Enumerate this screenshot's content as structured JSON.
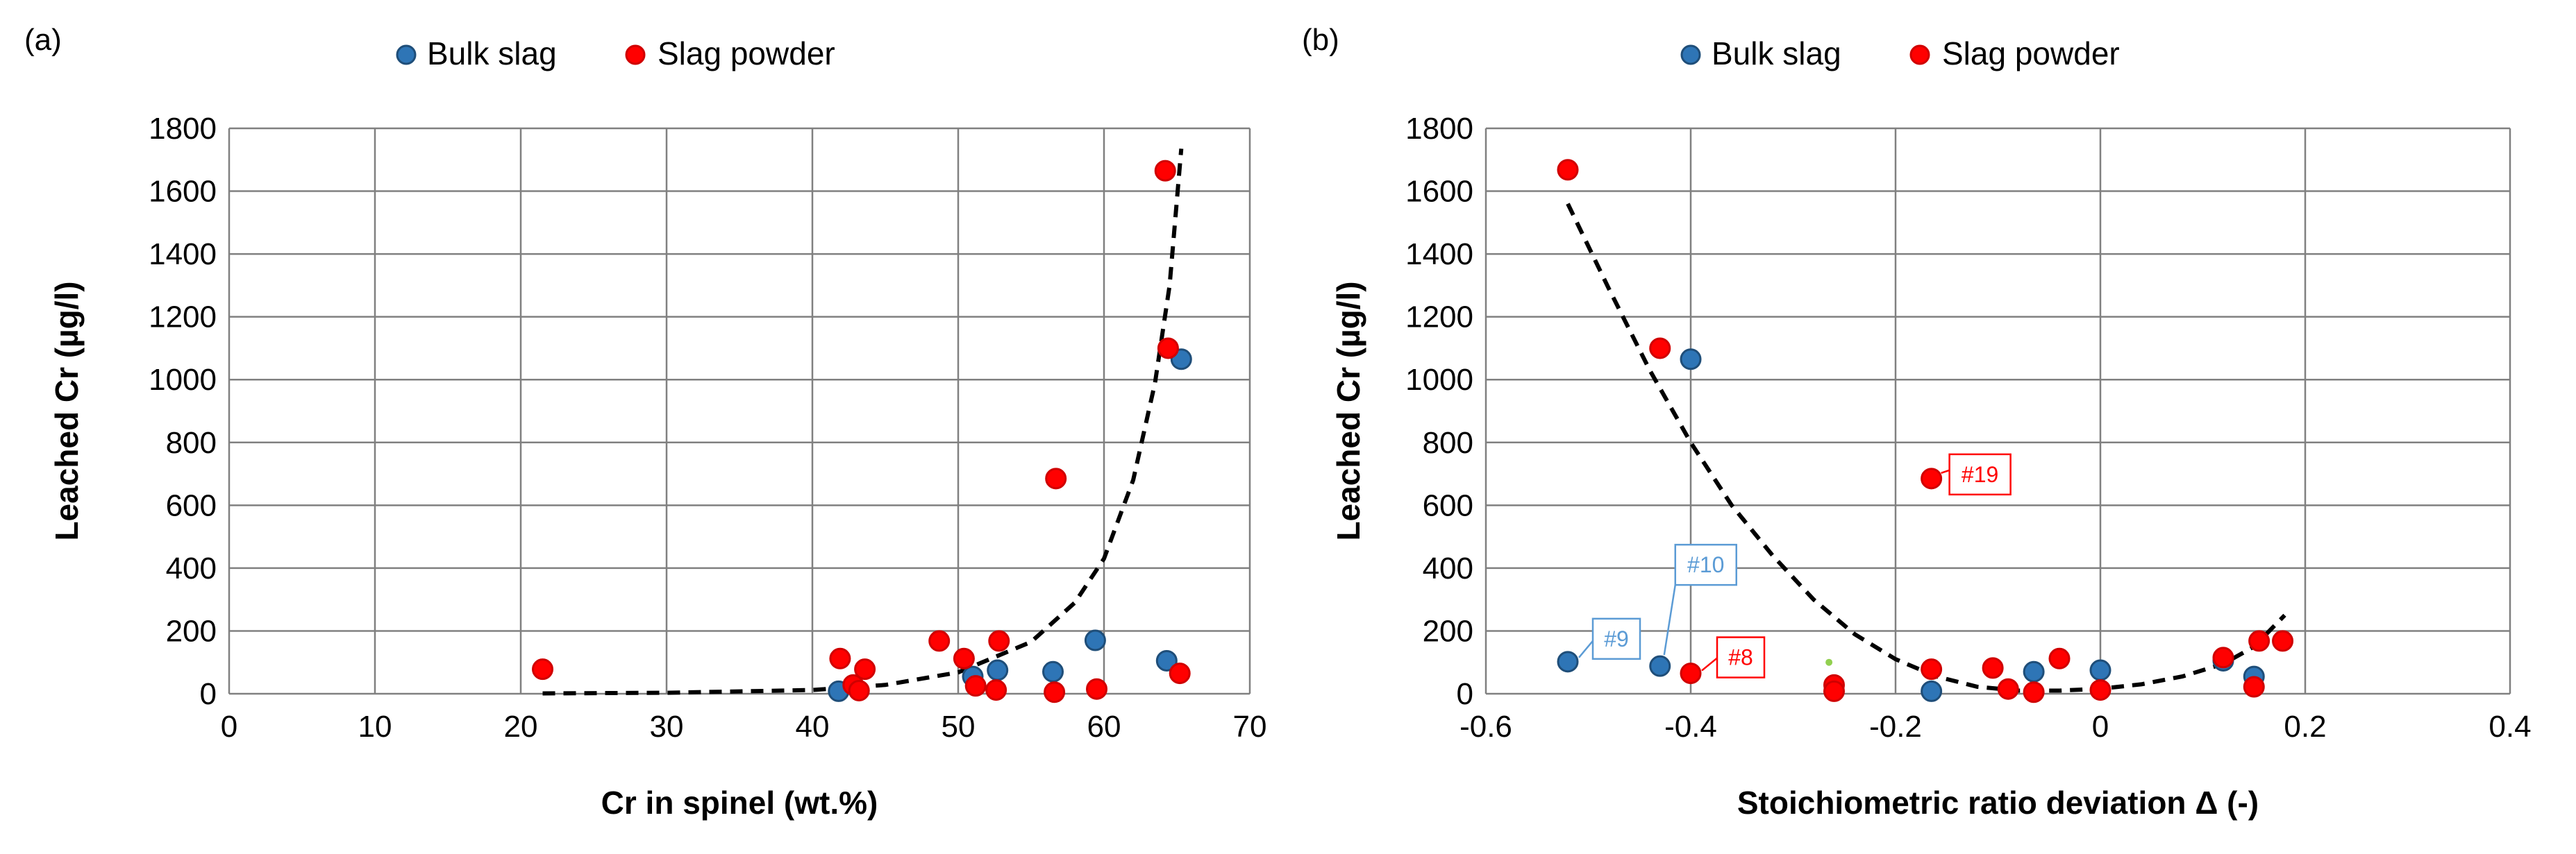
{
  "colors": {
    "bulk_fill": "#2E75B6",
    "bulk_stroke": "#1F4E79",
    "powder_fill": "#FF0000",
    "powder_stroke": "#D00000",
    "grid": "#808080",
    "trend": "#000000",
    "annotation_blue": "#5B9BD5",
    "annotation_red": "#FF0000",
    "stray_green": "#92D050"
  },
  "chart_data": [
    {
      "type": "scatter",
      "panel_label": "(a)",
      "title": "",
      "xlabel": "Cr in spinel (wt.%)",
      "ylabel": "Leached Cr (µg/l)",
      "xlim": [
        0,
        70
      ],
      "ylim": [
        0,
        1800
      ],
      "xticks": [
        0,
        10,
        20,
        30,
        40,
        50,
        60,
        70
      ],
      "yticks": [
        0,
        200,
        400,
        600,
        800,
        1000,
        1200,
        1400,
        1600,
        1800
      ],
      "grid": true,
      "legend": [
        "Bulk slag",
        "Slag powder"
      ],
      "legend_position": "top-center",
      "series": [
        {
          "name": "Bulk slag",
          "points": [
            [
              41.8,
              8
            ],
            [
              51.0,
              55
            ],
            [
              52.7,
              75
            ],
            [
              56.5,
              70
            ],
            [
              59.4,
              170
            ],
            [
              64.3,
              105
            ],
            [
              65.3,
              1065
            ]
          ]
        },
        {
          "name": "Slag powder",
          "points": [
            [
              21.5,
              78
            ],
            [
              41.9,
              112
            ],
            [
              42.8,
              28
            ],
            [
              43.2,
              10
            ],
            [
              43.6,
              78
            ],
            [
              48.7,
              168
            ],
            [
              50.4,
              112
            ],
            [
              51.2,
              25
            ],
            [
              52.6,
              12
            ],
            [
              52.8,
              168
            ],
            [
              56.6,
              5
            ],
            [
              56.7,
              685
            ],
            [
              59.5,
              15
            ],
            [
              64.2,
              1665
            ],
            [
              64.4,
              1100
            ],
            [
              65.2,
              65
            ]
          ]
        }
      ],
      "trendline": {
        "type": "exponential",
        "style": "dashed",
        "points": [
          [
            21.5,
            1
          ],
          [
            30,
            3
          ],
          [
            40,
            12
          ],
          [
            45,
            28
          ],
          [
            50,
            68
          ],
          [
            55,
            165
          ],
          [
            58,
            290
          ],
          [
            60,
            430
          ],
          [
            62,
            680
          ],
          [
            63.5,
            990
          ],
          [
            64.5,
            1300
          ],
          [
            65.3,
            1735
          ]
        ]
      },
      "annotations": []
    },
    {
      "type": "scatter",
      "panel_label": "(b)",
      "title": "",
      "xlabel": "Stoichiometric ratio deviation Δ (-)",
      "ylabel": "Leached Cr (µg/l)",
      "xlim": [
        -0.6,
        0.4
      ],
      "ylim": [
        0,
        1800
      ],
      "xticks": [
        -0.6,
        -0.4,
        -0.2,
        0,
        0.2,
        0.4
      ],
      "xtick_labels": [
        "-0.6",
        "-0.4",
        "-0.2",
        "0",
        "0.2",
        "0.4"
      ],
      "yticks": [
        0,
        200,
        400,
        600,
        800,
        1000,
        1200,
        1400,
        1600,
        1800
      ],
      "grid": true,
      "legend": [
        "Bulk slag",
        "Slag powder"
      ],
      "legend_position": "top-center",
      "series": [
        {
          "name": "Bulk slag",
          "points": [
            [
              -0.52,
              102
            ],
            [
              -0.43,
              88
            ],
            [
              -0.4,
              1065
            ],
            [
              -0.165,
              8
            ],
            [
              -0.065,
              70
            ],
            [
              0.0,
              75
            ],
            [
              0.12,
              105
            ],
            [
              0.15,
              55
            ]
          ]
        },
        {
          "name": "Slag powder",
          "points": [
            [
              -0.52,
              1668
            ],
            [
              -0.43,
              1100
            ],
            [
              -0.4,
              65
            ],
            [
              -0.26,
              28
            ],
            [
              -0.26,
              8
            ],
            [
              -0.165,
              78
            ],
            [
              -0.165,
              685
            ],
            [
              -0.105,
              82
            ],
            [
              -0.09,
              15
            ],
            [
              -0.065,
              5
            ],
            [
              -0.04,
              112
            ],
            [
              0.0,
              12
            ],
            [
              0.12,
              115
            ],
            [
              0.15,
              22
            ],
            [
              0.155,
              168
            ],
            [
              0.178,
              168
            ]
          ]
        }
      ],
      "trendline": {
        "type": "polynomial",
        "style": "dashed",
        "points": [
          [
            -0.52,
            1560
          ],
          [
            -0.48,
            1290
          ],
          [
            -0.44,
            1030
          ],
          [
            -0.4,
            800
          ],
          [
            -0.36,
            600
          ],
          [
            -0.32,
            440
          ],
          [
            -0.28,
            300
          ],
          [
            -0.24,
            190
          ],
          [
            -0.2,
            110
          ],
          [
            -0.16,
            55
          ],
          [
            -0.12,
            22
          ],
          [
            -0.08,
            10
          ],
          [
            -0.04,
            10
          ],
          [
            0.0,
            16
          ],
          [
            0.04,
            30
          ],
          [
            0.08,
            55
          ],
          [
            0.12,
            95
          ],
          [
            0.15,
            150
          ],
          [
            0.18,
            250
          ]
        ]
      },
      "annotations": [
        {
          "text": "#9",
          "color": "blue",
          "x": -0.52,
          "y": 102
        },
        {
          "text": "#10",
          "color": "blue",
          "x": -0.43,
          "y": 88
        },
        {
          "text": "#8",
          "color": "red",
          "x": -0.4,
          "y": 65
        },
        {
          "text": "#19",
          "color": "red",
          "x": -0.165,
          "y": 685
        }
      ],
      "stray_point": {
        "x": -0.265,
        "y": 100
      }
    }
  ]
}
